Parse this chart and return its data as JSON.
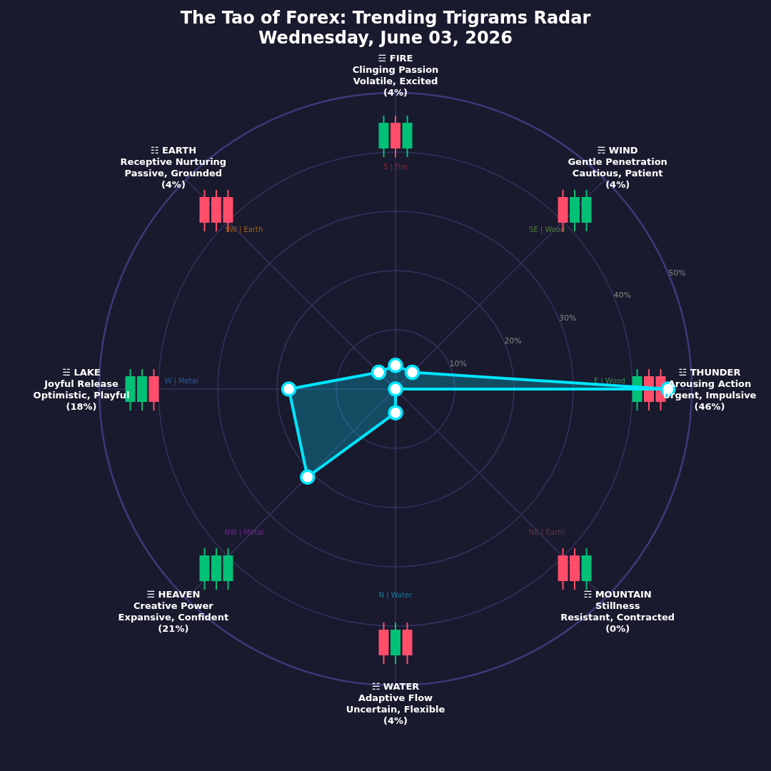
{
  "chart_data": {
    "type": "radar",
    "title": "The Tao of Forex: Trending Trigrams Radar",
    "subtitle": "Wednesday, June 03, 2026",
    "categories": [
      "☲ FIRE\nClinging Passion\nVolatile, Excited\n(4%)",
      "☴ WIND\nGentle Penetration\nCautious, Patient\n(4%)",
      "☳ THUNDER\nArousing Action\nUrgent, Impulsive\n(46%)",
      "☶ MOUNTAIN\nStillness\nResistant, Contracted\n(0%)",
      "☵ WATER\nAdaptive Flow\nUncertain, Flexible\n(4%)",
      "☰ HEAVEN\nCreative Power\nExpansive, Confident\n(21%)",
      "☱ LAKE\nJoyful Release\nOptimistic, Playful\n(18%)",
      "☷ EARTH\nReceptive Nurturing\nPassive, Grounded\n(4%)"
    ],
    "series": [
      {
        "color": "#00e5ff",
        "values": [
          4,
          4,
          46,
          0,
          4,
          21,
          18,
          4
        ]
      }
    ],
    "ylim": [
      0,
      50
    ],
    "yticks": [
      {
        "value": 10,
        "label": "10%"
      },
      {
        "value": 20,
        "label": "20%"
      },
      {
        "value": 30,
        "label": "30%"
      },
      {
        "value": 40,
        "label": "40%"
      },
      {
        "value": 50,
        "label": "50%"
      }
    ],
    "grid": true,
    "marker": "circle",
    "annotations": [
      "S | Fire",
      "SE | Wood",
      "E | Wood",
      "NE | Earth",
      "N | Water",
      "NW | Metal",
      "W | Metal",
      "SW | Earth"
    ]
  }
}
